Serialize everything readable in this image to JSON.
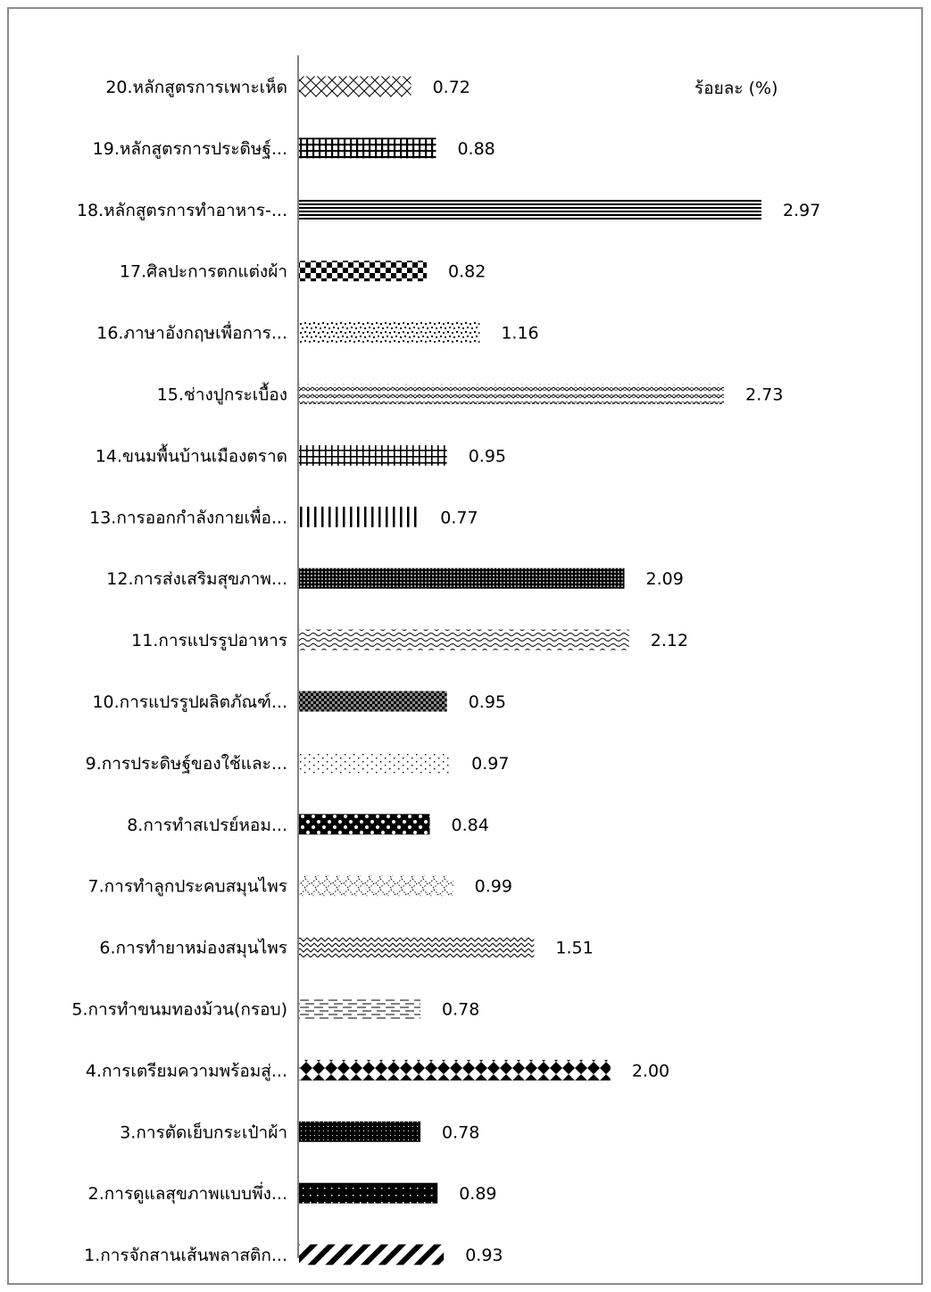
{
  "chart_data": {
    "type": "bar",
    "orientation": "horizontal",
    "unit_label": "ร้อยละ (%)",
    "categories": [
      "1.การจักสานเส้นพลาสติก...",
      "2.การดูแลสุขภาพแบบพึ่ง...",
      "3.การตัดเย็บกระเป๋าผ้า",
      "4.การเตรียมความพร้อมสู่...",
      "5.การทำขนมทองม้วน(กรอบ)",
      "6.การทำยาหม่องสมุนไพร",
      "7.การทำลูกประคบสมุนไพร",
      "8.การทำสเปรย์หอม...",
      "9.การประดิษฐ์ของใช้และ...",
      "10.การแปรรูปผลิตภัณฑ์...",
      "11.การแปรรูปอาหาร",
      "12.การส่งเสริมสุขภาพ...",
      "13.การออกกำลังกายเพื่อ...",
      "14.ขนมพื้นบ้านเมืองตราด",
      "15.ช่างปูกระเบื้อง",
      "16.ภาษาอังกฤษเพื่อการ...",
      "17.ศิลปะการตกแต่งผ้า",
      "18.หลักสูตรการทำอาหาร-...",
      "19.หลักสูตรการประดิษฐ์...",
      "20.หลักสูตรการเพาะเห็ด"
    ],
    "values": [
      0.93,
      0.89,
      0.78,
      2.0,
      0.78,
      1.51,
      0.99,
      0.84,
      0.97,
      0.95,
      2.12,
      2.09,
      0.77,
      0.95,
      2.73,
      1.16,
      0.82,
      2.97,
      0.88,
      0.72
    ],
    "value_labels": [
      "0.93",
      "0.89",
      "0.78",
      "2.00",
      "0.78",
      "1.51",
      "0.99",
      "0.84",
      "0.97",
      "0.95",
      "2.12",
      "2.09",
      "0.77",
      "0.95",
      "2.73",
      "1.16",
      "0.82",
      "2.97",
      "0.88",
      "0.72"
    ],
    "patterns": [
      "wide-diagonal",
      "dots-on-black",
      "small-grid-on-black",
      "diamonds",
      "dashed-horizontal",
      "zigzag",
      "dotted-diamond",
      "large-checker",
      "sparse-dots",
      "checker-dense",
      "wave",
      "dense-checker",
      "vertical-lines",
      "small-grid",
      "divot",
      "confetti",
      "checker",
      "horizontal-lines",
      "grid",
      "outlined-diamond"
    ],
    "colors": {
      "bar": "#000000",
      "axis": "#595959",
      "border": "#8c8c8c",
      "text": "#000000"
    },
    "grid": false,
    "legend": "none"
  }
}
